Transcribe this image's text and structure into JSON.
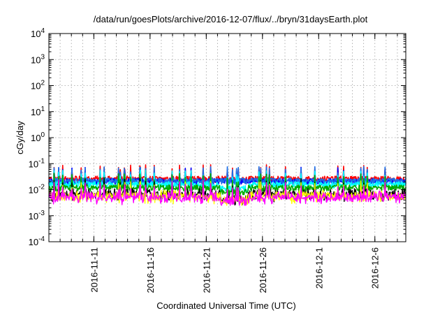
{
  "chart_data": {
    "type": "line",
    "title": "/data/run/goesPlots/archive/2016-12-07/flux/../bryn/31daysEarth.plot",
    "xlabel": "Coordinated Universal Time (UTC)",
    "ylabel": "cGy/day",
    "yscale": "log",
    "ylim": [
      0.0001,
      10000
    ],
    "xlim": [
      "2016-11-07T00:00",
      "2016-12-08T18:00"
    ],
    "y_ticks": [
      {
        "value": 0.0001,
        "base": "10",
        "exp": "-4"
      },
      {
        "value": 0.001,
        "base": "10",
        "exp": "-3"
      },
      {
        "value": 0.01,
        "base": "10",
        "exp": "-2"
      },
      {
        "value": 0.1,
        "base": "10",
        "exp": "-1"
      },
      {
        "value": 1,
        "base": "10",
        "exp": "0"
      },
      {
        "value": 10,
        "base": "10",
        "exp": "1"
      },
      {
        "value": 100,
        "base": "10",
        "exp": "2"
      },
      {
        "value": 1000,
        "base": "10",
        "exp": "3"
      },
      {
        "value": 10000,
        "base": "10",
        "exp": "4"
      }
    ],
    "x_ticks": [
      {
        "date": "2016-11-11",
        "label": "2016-11-11"
      },
      {
        "date": "2016-11-16",
        "label": "2016-11-16"
      },
      {
        "date": "2016-11-21",
        "label": "2016-11-21"
      },
      {
        "date": "2016-11-26",
        "label": "2016-11-26"
      },
      {
        "date": "2016-12-01",
        "label": "2016-12-1"
      },
      {
        "date": "2016-12-06",
        "label": "2016-12-6"
      }
    ],
    "grid": true,
    "series": [
      {
        "color": "#ff0000",
        "base": 0.026
      },
      {
        "color": "#0000ff",
        "base": 0.021
      },
      {
        "color": "#1e6fe6",
        "base": 0.022
      },
      {
        "color": "#00ffff",
        "base": 0.016
      },
      {
        "color": "#00aa00",
        "base": 0.012
      },
      {
        "color": "#000000",
        "base": 0.0065
      },
      {
        "color": "#ffff00",
        "base": 0.0055
      },
      {
        "color": "#ff00ff",
        "base": 0.005
      }
    ]
  }
}
